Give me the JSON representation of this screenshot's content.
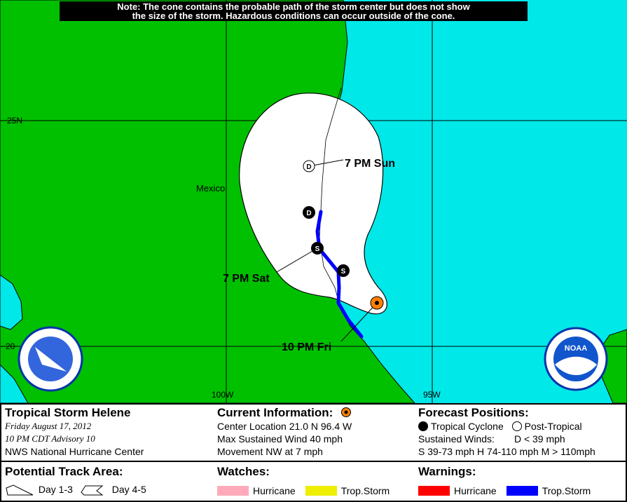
{
  "note": {
    "line1": "Note: The cone contains the probable path of the storm center but does not show",
    "line2": "the size of the storm. Hazardous conditions can occur outside of the cone."
  },
  "map": {
    "colors": {
      "land": "#00c000",
      "water": "#00e8e8",
      "cone": "#ffffff",
      "track_warning": "#0000ff",
      "current": "#ff8000"
    },
    "grid_labels": {
      "lat25": "25N",
      "lat20": "20",
      "lon100": "100W",
      "lon95": "95W"
    },
    "place_label": "Mexico",
    "positions": [
      {
        "label": "10 PM Fri",
        "symbol": "current",
        "icon": "orange-circle-icon"
      },
      {
        "label": "",
        "symbol": "S",
        "icon": "tropical-storm-icon"
      },
      {
        "label": "7 PM Sat",
        "symbol": "S",
        "icon": "tropical-storm-icon"
      },
      {
        "label": "",
        "symbol": "D",
        "icon": "tropical-depression-icon"
      },
      {
        "label": "7 PM Sun",
        "symbol": "D",
        "icon": "post-tropical-icon"
      }
    ]
  },
  "legend": {
    "storm": {
      "title": "Tropical Storm Helene",
      "date": "Friday    August 17, 2012",
      "advisory": "10 PM CDT Advisory 10",
      "center": "NWS National Hurricane Center"
    },
    "current": {
      "title": "Current Information:",
      "location": "Center Location 21.0 N  96.4 W",
      "wind": "Max Sustained Wind  40 mph",
      "movement": "Movement NW at  7 mph"
    },
    "forecast": {
      "title": "Forecast Positions:",
      "tropical": "Tropical Cyclone",
      "post": "Post-Tropical",
      "winds_label": "Sustained Winds:",
      "d": "D  < 39 mph",
      "shm": "S  39-73 mph  H  74-110 mph  M  > 110mph"
    },
    "track": {
      "title": "Potential Track Area:",
      "day13": "Day 1-3",
      "day45": "Day 4-5"
    },
    "watches": {
      "title": "Watches:",
      "hurricane": "Hurricane",
      "ts": "Trop.Storm",
      "hurricane_color": "#ffaabb",
      "ts_color": "#eeee00"
    },
    "warnings": {
      "title": "Warnings:",
      "hurricane": "Hurricane",
      "ts": "Trop.Storm",
      "hurricane_color": "#ff0000",
      "ts_color": "#0000ff"
    }
  },
  "logos": {
    "left": "NATIONAL WEATHER SERVICE",
    "right": "NOAA"
  }
}
